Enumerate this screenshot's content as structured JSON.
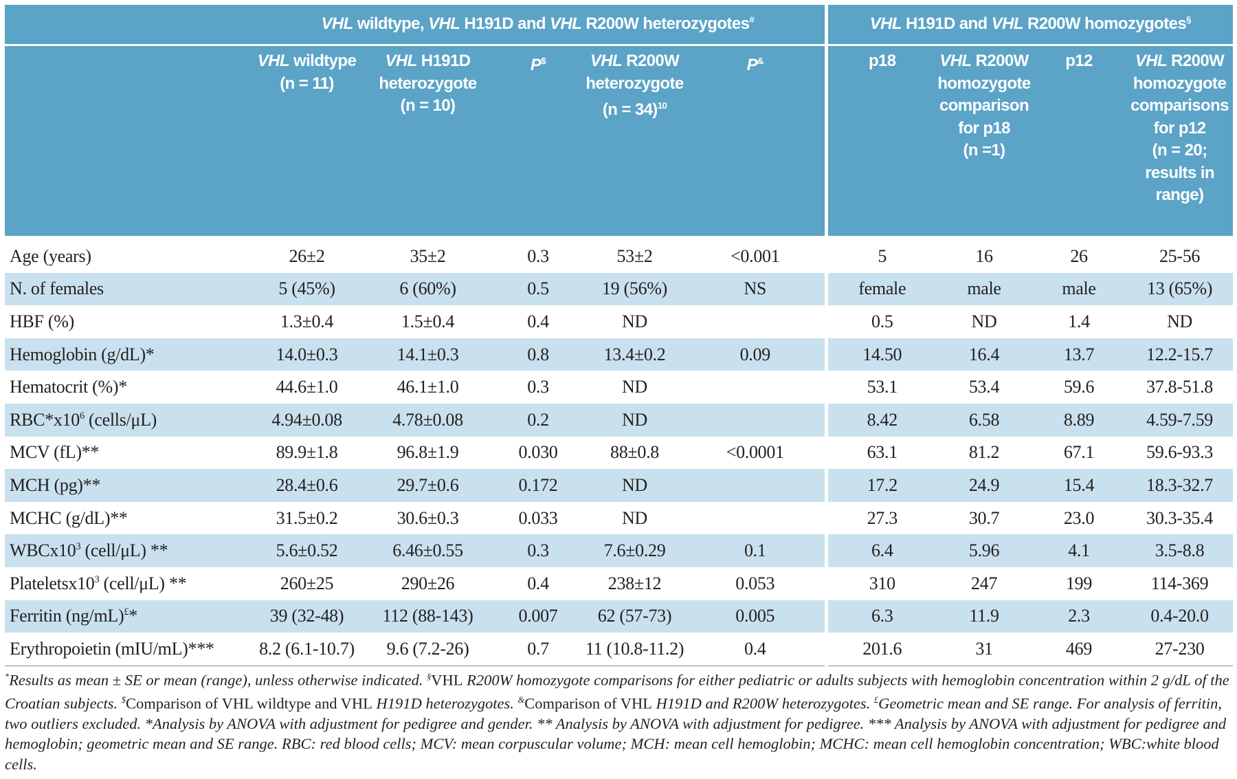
{
  "table": {
    "groups": [
      [
        {
          "text": "VHL",
          "style": "italic"
        },
        " wildtype, ",
        {
          "text": "VHL",
          "style": "italic"
        },
        " H191D and ",
        {
          "text": "VHL",
          "style": "italic"
        },
        " R200W heterozygotes",
        {
          "text": "#",
          "style": "sup"
        }
      ],
      [
        {
          "text": "VHL",
          "style": "italic"
        },
        " H191D and ",
        {
          "text": "VHL",
          "style": "italic"
        },
        " R200W homozygotes",
        {
          "text": "§",
          "style": "sup"
        }
      ]
    ],
    "columns": [
      {
        "lines": [
          [
            {
              "text": "VHL",
              "style": "italic"
            },
            " wildtype"
          ],
          [
            "(n = 11)"
          ]
        ]
      },
      {
        "lines": [
          [
            {
              "text": "VHL",
              "style": "italic"
            },
            " H191D"
          ],
          [
            "heterozygote"
          ],
          [
            "(n = 10)"
          ]
        ]
      },
      {
        "lines": [
          [
            {
              "text": "P",
              "style": "italic"
            },
            {
              "text": "$",
              "style": "sup"
            }
          ]
        ]
      },
      {
        "lines": [
          [
            {
              "text": "VHL",
              "style": "italic"
            },
            " R200W"
          ],
          [
            "heterozygote"
          ],
          [
            "(n = 34)",
            {
              "text": "10",
              "style": "sup"
            }
          ]
        ]
      },
      {
        "lines": [
          [
            {
              "text": "P",
              "style": "italic"
            },
            {
              "text": "&",
              "style": "sup"
            }
          ]
        ]
      },
      {
        "lines": [
          [
            "p18"
          ]
        ]
      },
      {
        "lines": [
          [
            {
              "text": "VHL",
              "style": "italic"
            },
            " R200W"
          ],
          [
            "homozygote"
          ],
          [
            "comparison"
          ],
          [
            "for p18"
          ],
          [
            "(n =1)"
          ]
        ]
      },
      {
        "lines": [
          [
            "p12"
          ]
        ]
      },
      {
        "lines": [
          [
            {
              "text": "VHL",
              "style": "italic"
            },
            " R200W"
          ],
          [
            "homozygote"
          ],
          [
            "comparisons"
          ],
          [
            "for p12"
          ],
          [
            "(n = 20;"
          ],
          [
            "results in"
          ],
          [
            "range)"
          ]
        ]
      }
    ],
    "rows": [
      {
        "label": "Age (years)",
        "values": [
          "26±2",
          "35±2",
          "0.3",
          "53±2",
          "<0.001",
          "5",
          "16",
          "26",
          "25-56"
        ]
      },
      {
        "label": "N. of females",
        "values": [
          "5 (45%)",
          "6 (60%)",
          "0.5",
          "19 (56%)",
          "NS",
          "female",
          "male",
          "male",
          "13 (65%)"
        ]
      },
      {
        "label": "HBF (%)",
        "values": [
          "1.3±0.4",
          "1.5±0.4",
          "0.4",
          "ND",
          null,
          "0.5",
          "ND",
          "1.4",
          "ND"
        ]
      },
      {
        "label": "Hemoglobin (g/dL)*",
        "values": [
          "14.0±0.3",
          "14.1±0.3",
          "0.8",
          "13.4±0.2",
          "0.09",
          "14.50",
          "16.4",
          "13.7",
          "12.2-15.7"
        ]
      },
      {
        "label": "Hematocrit (%)*",
        "values": [
          "44.6±1.0",
          "46.1±1.0",
          "0.3",
          "ND",
          null,
          "53.1",
          "53.4",
          "59.6",
          "37.8-51.8"
        ]
      },
      {
        "label": [
          "RBC*x10",
          {
            "text": "6",
            "style": "sup"
          },
          " (cells/μL)"
        ],
        "values": [
          "4.94±0.08",
          "4.78±0.08",
          "0.2",
          "ND",
          null,
          "8.42",
          "6.58",
          "8.89",
          "4.59-7.59"
        ]
      },
      {
        "label": "MCV (fL)**",
        "values": [
          "89.9±1.8",
          "96.8±1.9",
          "0.030",
          "88±0.8",
          "<0.0001",
          "63.1",
          "81.2",
          "67.1",
          "59.6-93.3"
        ]
      },
      {
        "label": "MCH (pg)**",
        "values": [
          "28.4±0.6",
          "29.7±0.6",
          "0.172",
          "ND",
          null,
          "17.2",
          "24.9",
          "15.4",
          "18.3-32.7"
        ]
      },
      {
        "label": "MCHC (g/dL)**",
        "values": [
          "31.5±0.2",
          "30.6±0.3",
          "0.033",
          "ND",
          null,
          "27.3",
          "30.7",
          "23.0",
          "30.3-35.4"
        ]
      },
      {
        "label": [
          "WBCx10",
          {
            "text": "3",
            "style": "sup"
          },
          " (cell/μL) **"
        ],
        "values": [
          "5.6±0.52",
          "6.46±0.55",
          "0.3",
          "7.6±0.29",
          "0.1",
          "6.4",
          "5.96",
          "4.1",
          "3.5-8.8"
        ]
      },
      {
        "label": [
          "Plateletsx10",
          {
            "text": "3",
            "style": "sup"
          },
          " (cell/μL) **"
        ],
        "values": [
          "260±25",
          "290±26",
          "0.4",
          "238±12",
          "0.053",
          "310",
          "247",
          "199",
          "114-369"
        ]
      },
      {
        "label": [
          "Ferritin (ng/mL)",
          {
            "text": "£",
            "style": "sup"
          },
          "*"
        ],
        "values": [
          "39 (32-48)",
          "112 (88-143)",
          "0.007",
          "62 (57-73)",
          "0.005",
          "6.3",
          "11.9",
          "2.3",
          "0.4-20.0"
        ]
      },
      {
        "label": "Erythropoietin (mIU/mL)***",
        "values": [
          "8.2 (6.1-10.7)",
          "9.6 (7.2-26)",
          "0.7",
          "11 (10.8-11.2)",
          "0.4",
          "201.6",
          "31",
          "469",
          "27-230"
        ]
      }
    ]
  },
  "footnote": [
    {
      "text": "*",
      "style": "sup"
    },
    "Results as mean ± SE or mean (range), unless otherwise indicated. ",
    {
      "text": "§",
      "style": "sup"
    },
    {
      "text": "VHL",
      "style": "normal"
    },
    " R200W homozygote comparisons for either pediatric or adults subjects with hemoglobin concentration within 2 g/dL of the Croatian subjects. ",
    {
      "text": "$",
      "style": "sup"
    },
    {
      "text": "Comparison of VHL wildtype and VHL",
      "style": "normal"
    },
    " H191D heterozygotes. ",
    {
      "text": "&",
      "style": "sup"
    },
    {
      "text": "Comparison of VHL",
      "style": "normal"
    },
    " H191D and R200W heterozygotes. ",
    {
      "text": "£",
      "style": "sup"
    },
    "Geometric mean and SE range. For analysis of ferritin, two outliers excluded. *Analysis by ANOVA with adjustment for pedigree and gender. ** Analysis by ANOVA with adjustment for pedigree. *** Analysis by ANOVA with adjustment for pedigree and hemoglobin; geometric mean and SE range. RBC: red blood cells; MCV: mean corpuscular volume; MCH: mean cell hemoglobin; MCHC: mean cell hemoglobin concentration; WBC:white blood cells."
  ]
}
